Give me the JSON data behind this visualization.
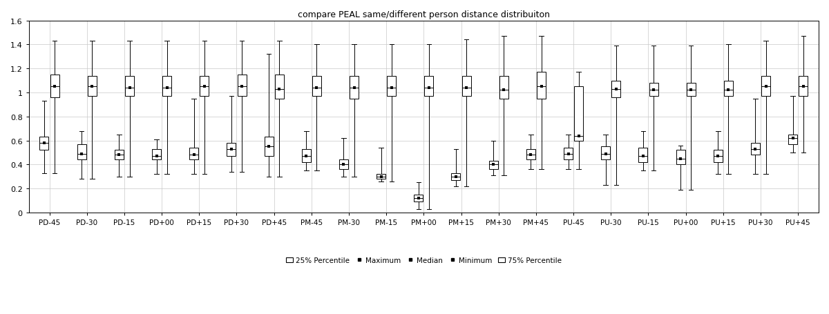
{
  "title": "compare PEAL same/different person distance distribuiton",
  "categories": [
    "PD-45",
    "PD-30",
    "PD-15",
    "PD+00",
    "PD+15",
    "PD+30",
    "PD+45",
    "PM-45",
    "PM-30",
    "PM-15",
    "PM+00",
    "PM+15",
    "PM+30",
    "PM+45",
    "PU-45",
    "PU-30",
    "PU-15",
    "PU+00",
    "PU+15",
    "PU+30",
    "PU+45"
  ],
  "ylim": [
    0,
    1.6
  ],
  "yticks": [
    0,
    0.2,
    0.4,
    0.6,
    0.8,
    1.0,
    1.2,
    1.4,
    1.6
  ],
  "ytick_labels": [
    "0",
    "0.2",
    "0.4",
    "0.6",
    "0.8",
    "1",
    "1.2",
    "1.4",
    "1.6"
  ],
  "boxes": [
    [
      {
        "min": 0.33,
        "q1": 0.52,
        "median": 0.58,
        "q3": 0.63,
        "max": 0.93
      },
      {
        "min": 0.33,
        "q1": 0.96,
        "median": 1.05,
        "q3": 1.15,
        "max": 1.43
      }
    ],
    [
      {
        "min": 0.28,
        "q1": 0.44,
        "median": 0.49,
        "q3": 0.57,
        "max": 0.68
      },
      {
        "min": 0.28,
        "q1": 0.97,
        "median": 1.05,
        "q3": 1.14,
        "max": 1.43
      }
    ],
    [
      {
        "min": 0.3,
        "q1": 0.44,
        "median": 0.48,
        "q3": 0.52,
        "max": 0.65
      },
      {
        "min": 0.3,
        "q1": 0.97,
        "median": 1.04,
        "q3": 1.14,
        "max": 1.43
      }
    ],
    [
      {
        "min": 0.32,
        "q1": 0.44,
        "median": 0.47,
        "q3": 0.53,
        "max": 0.61
      },
      {
        "min": 0.32,
        "q1": 0.97,
        "median": 1.04,
        "q3": 1.14,
        "max": 1.43
      }
    ],
    [
      {
        "min": 0.32,
        "q1": 0.44,
        "median": 0.48,
        "q3": 0.54,
        "max": 0.95
      },
      {
        "min": 0.32,
        "q1": 0.97,
        "median": 1.05,
        "q3": 1.14,
        "max": 1.43
      }
    ],
    [
      {
        "min": 0.34,
        "q1": 0.47,
        "median": 0.53,
        "q3": 0.58,
        "max": 0.97
      },
      {
        "min": 0.34,
        "q1": 0.97,
        "median": 1.05,
        "q3": 1.15,
        "max": 1.43
      }
    ],
    [
      {
        "min": 0.3,
        "q1": 0.47,
        "median": 0.55,
        "q3": 0.63,
        "max": 1.32
      },
      {
        "min": 0.3,
        "q1": 0.95,
        "median": 1.03,
        "q3": 1.15,
        "max": 1.43
      }
    ],
    [
      {
        "min": 0.35,
        "q1": 0.42,
        "median": 0.47,
        "q3": 0.53,
        "max": 0.68
      },
      {
        "min": 0.35,
        "q1": 0.97,
        "median": 1.04,
        "q3": 1.14,
        "max": 1.4
      }
    ],
    [
      {
        "min": 0.3,
        "q1": 0.36,
        "median": 0.4,
        "q3": 0.44,
        "max": 0.62
      },
      {
        "min": 0.3,
        "q1": 0.95,
        "median": 1.04,
        "q3": 1.14,
        "max": 1.4
      }
    ],
    [
      {
        "min": 0.26,
        "q1": 0.28,
        "median": 0.3,
        "q3": 0.32,
        "max": 0.54
      },
      {
        "min": 0.26,
        "q1": 0.97,
        "median": 1.04,
        "q3": 1.14,
        "max": 1.4
      }
    ],
    [
      {
        "min": 0.03,
        "q1": 0.09,
        "median": 0.12,
        "q3": 0.15,
        "max": 0.25
      },
      {
        "min": 0.03,
        "q1": 0.97,
        "median": 1.04,
        "q3": 1.14,
        "max": 1.4
      }
    ],
    [
      {
        "min": 0.22,
        "q1": 0.27,
        "median": 0.3,
        "q3": 0.33,
        "max": 0.53
      },
      {
        "min": 0.22,
        "q1": 0.97,
        "median": 1.04,
        "q3": 1.14,
        "max": 1.44
      }
    ],
    [
      {
        "min": 0.31,
        "q1": 0.36,
        "median": 0.4,
        "q3": 0.43,
        "max": 0.6
      },
      {
        "min": 0.31,
        "q1": 0.95,
        "median": 1.02,
        "q3": 1.14,
        "max": 1.47
      }
    ],
    [
      {
        "min": 0.36,
        "q1": 0.44,
        "median": 0.48,
        "q3": 0.53,
        "max": 0.65
      },
      {
        "min": 0.36,
        "q1": 0.95,
        "median": 1.05,
        "q3": 1.17,
        "max": 1.47
      }
    ],
    [
      {
        "min": 0.36,
        "q1": 0.44,
        "median": 0.49,
        "q3": 0.54,
        "max": 0.65
      },
      {
        "min": 0.36,
        "q1": 0.6,
        "median": 0.64,
        "q3": 1.05,
        "max": 1.17
      }
    ],
    [
      {
        "min": 0.23,
        "q1": 0.44,
        "median": 0.49,
        "q3": 0.55,
        "max": 0.65
      },
      {
        "min": 0.23,
        "q1": 0.96,
        "median": 1.03,
        "q3": 1.1,
        "max": 1.39
      }
    ],
    [
      {
        "min": 0.35,
        "q1": 0.42,
        "median": 0.47,
        "q3": 0.54,
        "max": 0.68
      },
      {
        "min": 0.35,
        "q1": 0.97,
        "median": 1.02,
        "q3": 1.08,
        "max": 1.39
      }
    ],
    [
      {
        "min": 0.19,
        "q1": 0.4,
        "median": 0.45,
        "q3": 0.52,
        "max": 0.56
      },
      {
        "min": 0.19,
        "q1": 0.97,
        "median": 1.02,
        "q3": 1.08,
        "max": 1.39
      }
    ],
    [
      {
        "min": 0.32,
        "q1": 0.42,
        "median": 0.47,
        "q3": 0.52,
        "max": 0.68
      },
      {
        "min": 0.32,
        "q1": 0.97,
        "median": 1.02,
        "q3": 1.1,
        "max": 1.4
      }
    ],
    [
      {
        "min": 0.32,
        "q1": 0.48,
        "median": 0.53,
        "q3": 0.58,
        "max": 0.95
      },
      {
        "min": 0.32,
        "q1": 0.97,
        "median": 1.05,
        "q3": 1.14,
        "max": 1.43
      }
    ],
    [
      {
        "min": 0.5,
        "q1": 0.57,
        "median": 0.62,
        "q3": 0.65,
        "max": 0.97
      },
      {
        "min": 0.5,
        "q1": 0.97,
        "median": 1.05,
        "q3": 1.14,
        "max": 1.47
      }
    ]
  ]
}
